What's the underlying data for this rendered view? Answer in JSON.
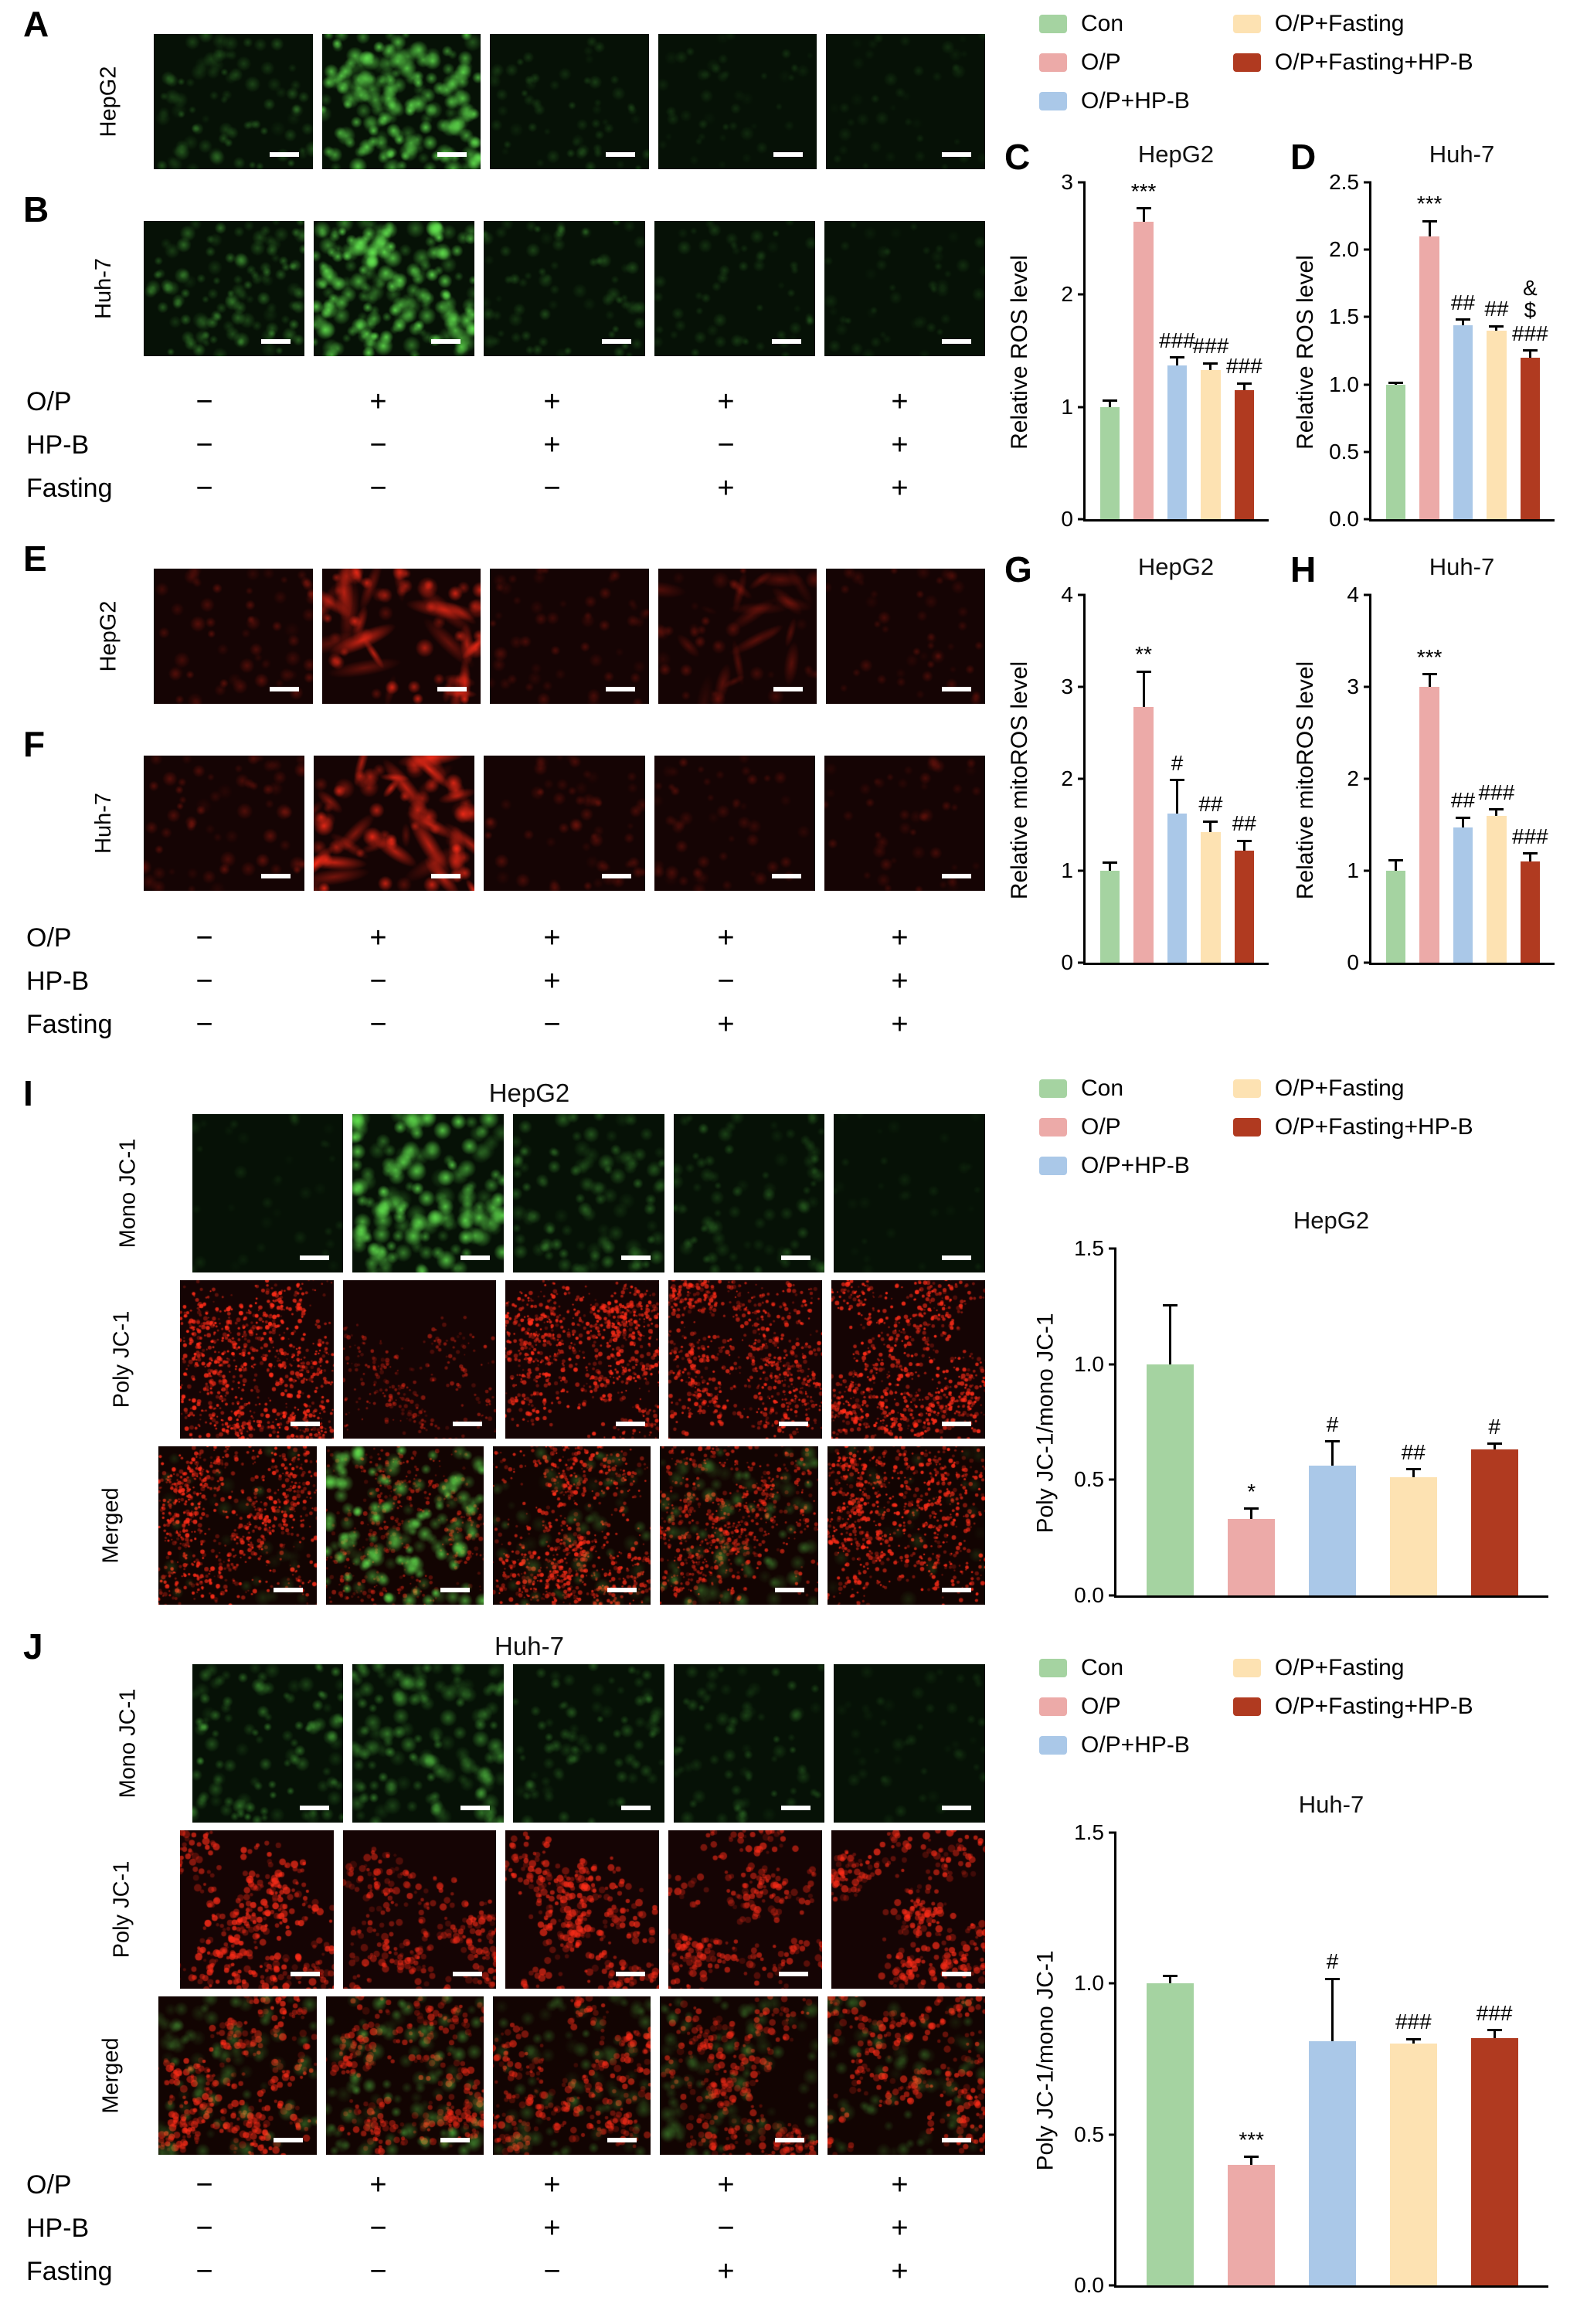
{
  "legend": {
    "items": [
      {
        "label": "Con",
        "color": "#a5d3a1"
      },
      {
        "label": "O/P",
        "color": "#ecaaa8"
      },
      {
        "label": "O/P+HP-B",
        "color": "#aac8e8"
      },
      {
        "label": "O/P+Fasting",
        "color": "#fde2b2"
      },
      {
        "label": "O/P+Fasting+HP-B",
        "color": "#b03a20"
      }
    ]
  },
  "conditions": {
    "rows": [
      {
        "label": "O/P",
        "values": [
          "−",
          "+",
          "+",
          "+",
          "+"
        ]
      },
      {
        "label": "HP-B",
        "values": [
          "−",
          "−",
          "+",
          "−",
          "+"
        ]
      },
      {
        "label": "Fasting",
        "values": [
          "−",
          "−",
          "−",
          "+",
          "+"
        ]
      }
    ]
  },
  "sections": {
    "ros": {
      "panel_a": {
        "letter": "A",
        "row_label": "HepG2"
      },
      "panel_b": {
        "letter": "B",
        "row_label": "Huh-7"
      }
    },
    "mitoros": {
      "panel_e": {
        "letter": "E",
        "row_label": "HepG2"
      },
      "panel_f": {
        "letter": "F",
        "row_label": "Huh-7"
      }
    },
    "jc1_hepg2": {
      "letter": "I",
      "title": "HepG2",
      "row_labels": [
        "Mono JC-1",
        "Poly JC-1",
        "Merged"
      ]
    },
    "jc1_huh7": {
      "letter": "J",
      "title": "Huh-7",
      "row_labels": [
        "Mono JC-1",
        "Poly JC-1",
        "Merged"
      ]
    }
  },
  "chart_data": [
    {
      "id": "C",
      "letter": "C",
      "type": "bar",
      "title": "HepG2",
      "ylabel": "Relative ROS level",
      "categories": [
        "Con",
        "O/P",
        "O/P+HP-B",
        "O/P+Fasting",
        "O/P+Fasting+HP-B"
      ],
      "values": [
        1.0,
        2.65,
        1.37,
        1.33,
        1.15
      ],
      "errors": [
        0.07,
        0.13,
        0.08,
        0.07,
        0.07
      ],
      "annotations": [
        "",
        "***",
        "###",
        "###",
        "###"
      ],
      "ylim": [
        0,
        3
      ],
      "yticks": [
        "0",
        "1",
        "2",
        "3"
      ]
    },
    {
      "id": "D",
      "letter": "D",
      "type": "bar",
      "title": "Huh-7",
      "ylabel": "Relative ROS level",
      "categories": [
        "Con",
        "O/P",
        "O/P+HP-B",
        "O/P+Fasting",
        "O/P+Fasting+HP-B"
      ],
      "values": [
        1.0,
        2.1,
        1.44,
        1.4,
        1.2
      ],
      "errors": [
        0.02,
        0.12,
        0.05,
        0.04,
        0.06
      ],
      "annotations": [
        "",
        "***",
        "##",
        "##",
        "&\n$\n###"
      ],
      "ylim": [
        0,
        2.5
      ],
      "yticks": [
        "0.0",
        "0.5",
        "1.0",
        "1.5",
        "2.0",
        "2.5"
      ]
    },
    {
      "id": "G",
      "letter": "G",
      "type": "bar",
      "title": "HepG2",
      "ylabel": "Relative mitoROS level",
      "categories": [
        "Con",
        "O/P",
        "O/P+HP-B",
        "O/P+Fasting",
        "O/P+Fasting+HP-B"
      ],
      "values": [
        1.0,
        2.78,
        1.62,
        1.42,
        1.22
      ],
      "errors": [
        0.1,
        0.4,
        0.38,
        0.13,
        0.12
      ],
      "annotations": [
        "",
        "**",
        "#",
        "##",
        "##"
      ],
      "ylim": [
        0,
        4
      ],
      "yticks": [
        "0",
        "1",
        "2",
        "3",
        "4"
      ]
    },
    {
      "id": "H",
      "letter": "H",
      "type": "bar",
      "title": "Huh-7",
      "ylabel": "Relative mitoROS level",
      "categories": [
        "Con",
        "O/P",
        "O/P+HP-B",
        "O/P+Fasting",
        "O/P+Fasting+HP-B"
      ],
      "values": [
        1.0,
        3.0,
        1.47,
        1.6,
        1.1
      ],
      "errors": [
        0.13,
        0.15,
        0.12,
        0.08,
        0.1
      ],
      "annotations": [
        "",
        "***",
        "##",
        "###",
        "###"
      ],
      "ylim": [
        0,
        4
      ],
      "yticks": [
        "0",
        "1",
        "2",
        "3",
        "4"
      ]
    },
    {
      "id": "I",
      "letter": "",
      "type": "bar",
      "title": "HepG2",
      "ylabel": "Poly JC-1/mono JC-1",
      "categories": [
        "Con",
        "O/P",
        "O/P+HP-B",
        "O/P+Fasting",
        "O/P+Fasting+HP-B"
      ],
      "values": [
        1.0,
        0.33,
        0.56,
        0.51,
        0.63
      ],
      "errors": [
        0.26,
        0.05,
        0.11,
        0.04,
        0.03
      ],
      "annotations": [
        "",
        "*",
        "#",
        "##",
        "#"
      ],
      "ylim": [
        0,
        1.5
      ],
      "yticks": [
        "0.0",
        "0.5",
        "1.0",
        "1.5"
      ]
    },
    {
      "id": "J",
      "letter": "",
      "type": "bar",
      "title": "Huh-7",
      "ylabel": "Poly JC-1/mono JC-1",
      "categories": [
        "Con",
        "O/P",
        "O/P+HP-B",
        "O/P+Fasting",
        "O/P+Fasting+HP-B"
      ],
      "values": [
        1.0,
        0.4,
        0.81,
        0.8,
        0.82
      ],
      "errors": [
        0.03,
        0.03,
        0.21,
        0.02,
        0.03
      ],
      "annotations": [
        "",
        "***",
        "#",
        "###",
        "###"
      ],
      "ylim": [
        0,
        1.5
      ],
      "yticks": [
        "0.0",
        "0.5",
        "1.0",
        "1.5"
      ]
    }
  ]
}
